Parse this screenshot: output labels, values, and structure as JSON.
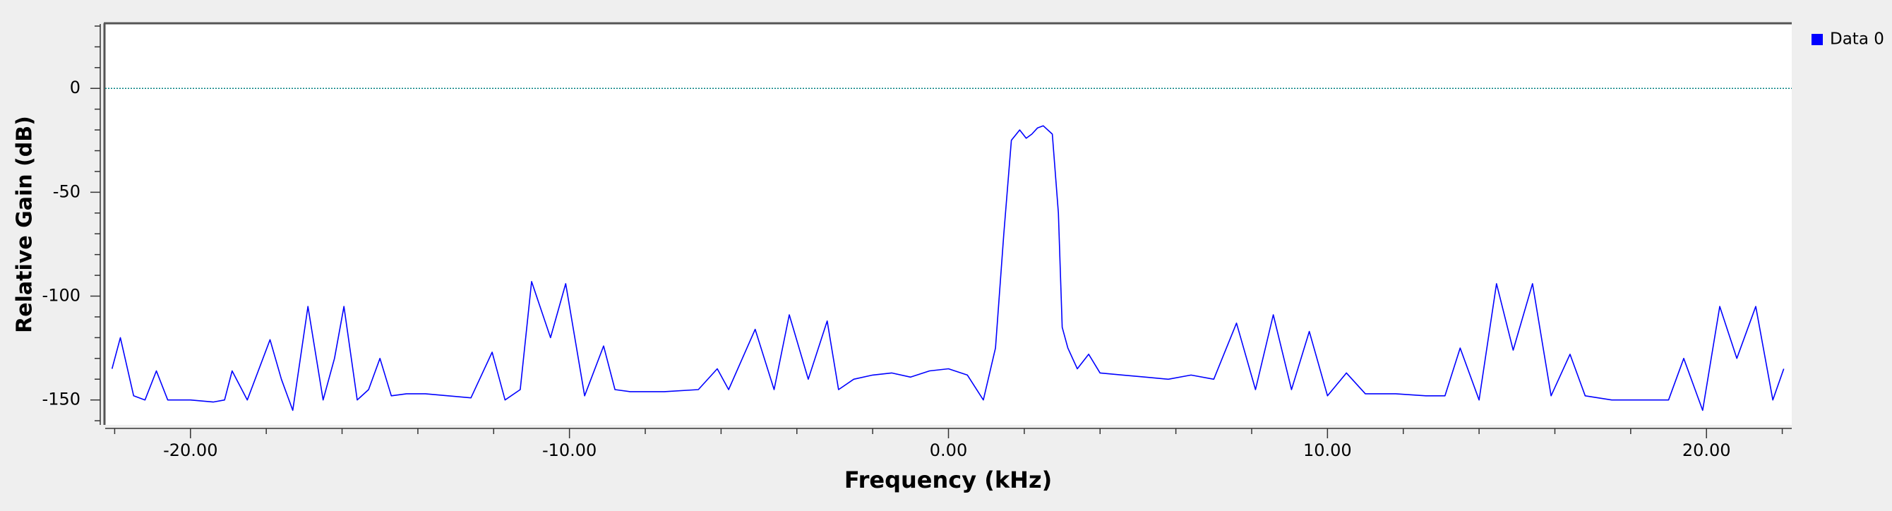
{
  "chart_data": {
    "type": "line",
    "xlabel": "Frequency (kHz)",
    "ylabel": "Relative Gain (dB)",
    "x": [
      -22.07,
      -21.85,
      -21.5,
      -21.2,
      -20.9,
      -20.6,
      -20.0,
      -19.4,
      -19.1,
      -18.9,
      -18.5,
      -17.9,
      -17.6,
      -17.3,
      -16.9,
      -16.5,
      -16.2,
      -15.95,
      -15.6,
      -15.3,
      -15.0,
      -14.7,
      -14.3,
      -13.8,
      -13.2,
      -12.6,
      -12.04,
      -11.7,
      -11.3,
      -11.0,
      -10.5,
      -10.1,
      -9.6,
      -9.1,
      -8.8,
      -8.4,
      -7.5,
      -6.6,
      -6.1,
      -5.8,
      -5.1,
      -4.6,
      -4.2,
      -3.7,
      -3.2,
      -2.9,
      -2.5,
      -2.0,
      -1.5,
      -1.0,
      -0.5,
      0.0,
      0.5,
      0.92,
      1.24,
      1.46,
      1.66,
      1.88,
      2.05,
      2.2,
      2.35,
      2.5,
      2.74,
      2.9,
      3.0,
      3.15,
      3.4,
      3.7,
      4.0,
      4.6,
      5.2,
      5.8,
      6.4,
      7.0,
      7.6,
      8.1,
      8.57,
      9.05,
      9.52,
      10.0,
      10.5,
      11.0,
      11.8,
      12.6,
      13.1,
      13.5,
      14.0,
      14.46,
      14.9,
      15.41,
      15.9,
      16.4,
      16.8,
      17.5,
      18.3,
      19.0,
      19.4,
      19.9,
      20.35,
      20.8,
      21.3,
      21.75,
      22.04
    ],
    "series": [
      {
        "name": "Data 0",
        "color": "#0000ff",
        "values": [
          -135,
          -120,
          -148,
          -150,
          -136,
          -150,
          -150,
          -151,
          -150,
          -136,
          -150,
          -121,
          -140,
          -155,
          -105,
          -150,
          -130,
          -105,
          -150,
          -145,
          -130,
          -148,
          -147,
          -147,
          -148,
          -149,
          -127,
          -150,
          -145,
          -93,
          -120,
          -94,
          -148,
          -124,
          -145,
          -146,
          -146,
          -145,
          -135,
          -145,
          -116,
          -145,
          -109,
          -140,
          -112,
          -145,
          -140,
          -138,
          -137,
          -139,
          -136,
          -135,
          -138,
          -150,
          -125,
          -70,
          -25,
          -20,
          -24,
          -22,
          -19,
          -18,
          -22,
          -60,
          -115,
          -125,
          -135,
          -128,
          -137,
          -138,
          -139,
          -140,
          -138,
          -140,
          -113,
          -145,
          -109,
          -145,
          -117,
          -148,
          -137,
          -147,
          -147,
          -148,
          -148,
          -125,
          -150,
          -94,
          -126,
          -94,
          -148,
          -128,
          -148,
          -150,
          -150,
          -150,
          -130,
          -155,
          -105,
          -130,
          -105,
          -150,
          -135
        ]
      }
    ],
    "xlim": [
      -22.25,
      22.25
    ],
    "ylim": [
      -162,
      31
    ],
    "xticks": [
      {
        "value": -20,
        "label": "-20.00"
      },
      {
        "value": -10,
        "label": "-10.00"
      },
      {
        "value": 0,
        "label": "0.00"
      },
      {
        "value": 10,
        "label": "10.00"
      },
      {
        "value": 20,
        "label": "20.00"
      }
    ],
    "xticks_minor": [
      -22,
      -18,
      -16,
      -14,
      -12,
      -8,
      -6,
      -4,
      -2,
      2,
      4,
      6,
      8,
      12,
      14,
      16,
      18,
      22
    ],
    "yticks": [
      0,
      -50,
      -100,
      -150
    ],
    "yticks_minor": [
      -160,
      -140,
      -130,
      -120,
      -110,
      -90,
      -80,
      -70,
      -60,
      -40,
      -30,
      -20,
      -10,
      10,
      20,
      30
    ],
    "reference_line": {
      "value": 0,
      "color": "#008080"
    },
    "legend": "top-right"
  }
}
